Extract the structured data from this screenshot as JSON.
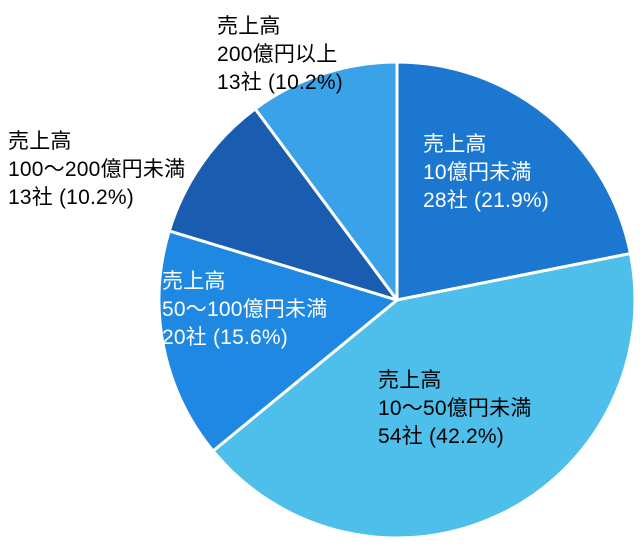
{
  "chart_data": {
    "type": "pie",
    "title": "",
    "unit": "社",
    "value_key": "companies",
    "start_angle_deg": 0,
    "direction": "clockwise",
    "border_color": "#ffffff",
    "background_color": "#ffffff",
    "slices": [
      {
        "name": "売上高10億円未満",
        "companies": 28,
        "percent": 21.9,
        "color": "#1b77cf",
        "label_placement": "inside",
        "lines": [
          "売上高",
          "10億円未満",
          "28社 (21.9%)"
        ]
      },
      {
        "name": "売上高10～50億円未満",
        "companies": 54,
        "percent": 42.2,
        "color": "#4dbfea",
        "label_placement": "inside",
        "lines": [
          "売上高",
          "10～50億円未満",
          "54社 (42.2%)"
        ]
      },
      {
        "name": "売上高50～100億円未満",
        "companies": 20,
        "percent": 15.6,
        "color": "#1e88e2",
        "label_placement": "inside",
        "lines": [
          "売上高",
          "50～100億円未満",
          "20社 (15.6%)"
        ]
      },
      {
        "name": "売上高100～200億円未満",
        "companies": 13,
        "percent": 10.2,
        "color": "#1a5cb0",
        "label_placement": "outside",
        "lines": [
          "売上高",
          "100～200億円未満",
          "13社 (10.2%)"
        ]
      },
      {
        "name": "売上高200億円以上",
        "companies": 13,
        "percent": 10.2,
        "color": "#3aa2e8",
        "label_placement": "outside",
        "lines": [
          "売上高",
          "200億円以上",
          "13社 (10.2%)"
        ]
      }
    ]
  }
}
